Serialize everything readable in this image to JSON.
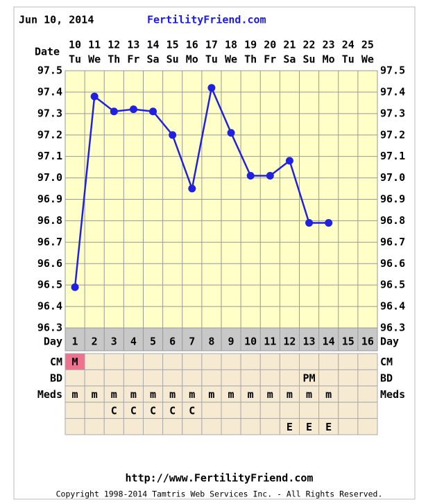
{
  "header": {
    "date": "Jun 10, 2014",
    "site": "FertilityFriend.com"
  },
  "chart_data": {
    "type": "line",
    "x_label": "Date",
    "categories": [
      "10",
      "11",
      "12",
      "13",
      "14",
      "15",
      "16",
      "17",
      "18",
      "19",
      "20",
      "21",
      "22",
      "23",
      "24",
      "25"
    ],
    "weekdays": [
      "Tu",
      "We",
      "Th",
      "Fr",
      "Sa",
      "Su",
      "Mo",
      "Tu",
      "We",
      "Th",
      "Fr",
      "Sa",
      "Su",
      "Mo",
      "Tu",
      "We"
    ],
    "values": [
      96.49,
      97.38,
      97.31,
      97.32,
      97.31,
      97.2,
      96.95,
      97.42,
      97.21,
      97.01,
      97.01,
      97.08,
      96.79,
      96.79,
      null,
      null
    ],
    "color": "#2020e0",
    "ylim": [
      96.3,
      97.5
    ],
    "yticks": [
      97.5,
      97.4,
      97.3,
      97.2,
      97.1,
      {
        "value": 97.0,
        "label": "97.0"
      },
      96.9,
      96.8,
      96.7,
      96.6,
      96.5,
      96.4,
      96.3
    ],
    "grid": true
  },
  "table": {
    "day_label": "Day",
    "days": [
      "1",
      "2",
      "3",
      "4",
      "5",
      "6",
      "7",
      "8",
      "9",
      "10",
      "11",
      "12",
      "13",
      "14",
      "15",
      "16"
    ],
    "rows": [
      {
        "label": "CM",
        "cells": [
          "M",
          null,
          null,
          null,
          null,
          null,
          null,
          null,
          null,
          null,
          null,
          null,
          null,
          null,
          null,
          null
        ],
        "marked_color": "#f07090"
      },
      {
        "label": "BD",
        "cells": [
          null,
          null,
          null,
          null,
          null,
          null,
          null,
          null,
          null,
          null,
          null,
          null,
          "PM",
          null,
          null,
          null
        ]
      },
      {
        "label": "Meds",
        "cells": [
          "m",
          "m",
          "m",
          "m",
          "m",
          "m",
          "m",
          "m",
          "m",
          "m",
          "m",
          "m",
          "m",
          "m",
          null,
          null
        ]
      },
      {
        "cells": [
          null,
          null,
          "C",
          "C",
          "C",
          "C",
          "C",
          null,
          null,
          null,
          null,
          null,
          null,
          null,
          null,
          null
        ]
      },
      {
        "cells": [
          null,
          null,
          null,
          null,
          null,
          null,
          null,
          null,
          null,
          null,
          null,
          "E",
          "E",
          "E",
          null,
          null
        ]
      }
    ]
  },
  "footer": {
    "url": "http://www.FertilityFriend.com",
    "copyright": "Copyright 1998-2014 Tamtris Web Services Inc. - All Rights Reserved."
  }
}
